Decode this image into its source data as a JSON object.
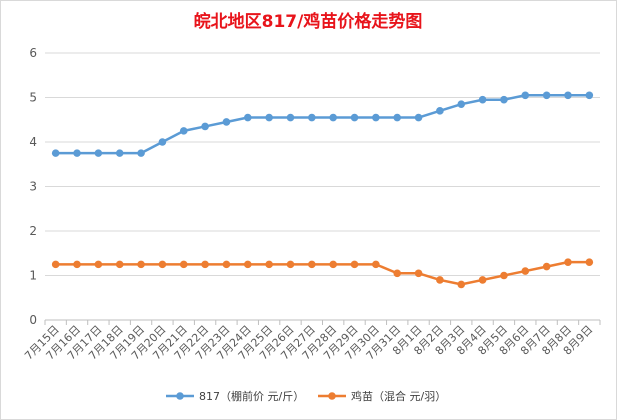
{
  "chart_data": {
    "type": "line",
    "title": "皖北地区817/鸡苗价格走势图",
    "categories": [
      "7月15日",
      "7月16日",
      "7月17日",
      "7月18日",
      "7月19日",
      "7月20日",
      "7月21日",
      "7月22日",
      "7月23日",
      "7月24日",
      "7月25日",
      "7月26日",
      "7月27日",
      "7月28日",
      "7月29日",
      "7月30日",
      "7月31日",
      "8月1日",
      "8月2日",
      "8月3日",
      "8月4日",
      "8月5日",
      "8月6日",
      "8月7日",
      "8月8日",
      "8月9日"
    ],
    "ylim": [
      0,
      6
    ],
    "yticks": [
      "0",
      "1",
      "2",
      "3",
      "4",
      "5",
      "6"
    ],
    "grid": true,
    "legend_position": "bottom",
    "series": [
      {
        "name": "817（棚前价 元/斤）",
        "color": "#5b9bd5",
        "values": [
          3.75,
          3.75,
          3.75,
          3.75,
          3.75,
          4.0,
          4.25,
          4.35,
          4.45,
          4.55,
          4.55,
          4.55,
          4.55,
          4.55,
          4.55,
          4.55,
          4.55,
          4.55,
          4.7,
          4.85,
          4.95,
          4.95,
          5.05,
          5.05,
          5.05,
          5.05
        ]
      },
      {
        "name": "鸡苗（混合 元/羽）",
        "color": "#ed7d31",
        "values": [
          1.25,
          1.25,
          1.25,
          1.25,
          1.25,
          1.25,
          1.25,
          1.25,
          1.25,
          1.25,
          1.25,
          1.25,
          1.25,
          1.25,
          1.25,
          1.25,
          1.05,
          1.05,
          0.9,
          0.8,
          0.9,
          1.0,
          1.1,
          1.2,
          1.3,
          1.3
        ]
      }
    ]
  }
}
